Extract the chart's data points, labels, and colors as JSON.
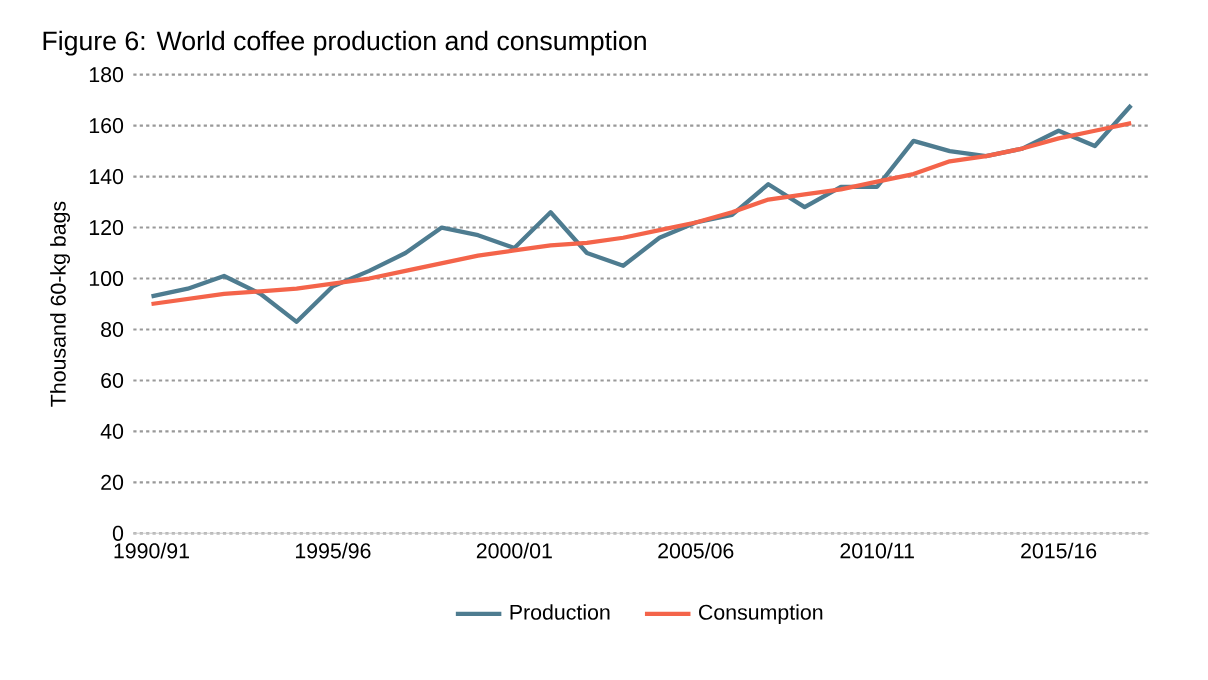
{
  "chart_data": {
    "type": "line",
    "title": "Figure 6: World coffee production and consumption",
    "ylabel": "Thousand 60-kg bags",
    "categories": [
      "1990/91",
      null,
      null,
      null,
      null,
      "1995/96",
      null,
      null,
      null,
      null,
      "2000/01",
      null,
      null,
      null,
      null,
      "2005/06",
      null,
      null,
      null,
      null,
      "2010/11",
      null,
      null,
      null,
      null,
      "2015/16",
      null,
      null
    ],
    "series": [
      {
        "name": "Production",
        "color": "#4e7c90",
        "values": [
          93,
          96,
          101,
          94,
          83,
          97,
          103,
          110,
          120,
          117,
          112,
          126,
          110,
          105,
          116,
          122,
          125,
          137,
          128,
          136,
          136,
          154,
          150,
          148,
          151,
          158,
          152,
          168
        ]
      },
      {
        "name": "Consumption",
        "color": "#f4644a",
        "values": [
          90,
          92,
          94,
          95,
          96,
          98,
          100,
          103,
          106,
          109,
          111,
          113,
          114,
          116,
          119,
          122,
          126,
          131,
          133,
          135,
          138,
          141,
          146,
          148,
          151,
          155,
          158,
          161
        ]
      }
    ],
    "ylim": [
      0,
      180
    ],
    "yticks": [
      0,
      20,
      40,
      60,
      80,
      100,
      120,
      140,
      160,
      180
    ],
    "grid": "y",
    "legend": "bottom",
    "line_style": "solid",
    "marker": "none"
  }
}
